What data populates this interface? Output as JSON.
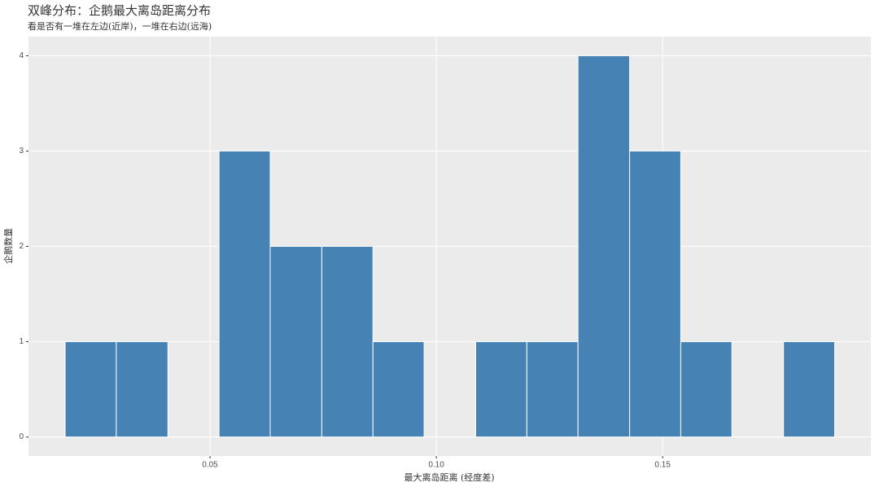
{
  "chart_data": {
    "type": "histogram",
    "title": "双峰分布：企鹅最大离岛距离分布",
    "subtitle": "看是否有一堆在左边(近岸)，一堆在右边(远海)",
    "x_label": "最大离岛距离 (经度差)",
    "y_label": "企鹅数量",
    "bins": [
      0.018,
      0.0293,
      0.0407,
      0.052,
      0.0633,
      0.0747,
      0.086,
      0.0973,
      0.1087,
      0.12,
      0.1313,
      0.1427,
      0.154,
      0.1653,
      0.1767,
      0.188
    ],
    "counts": [
      1,
      1,
      0,
      3,
      2,
      2,
      1,
      0,
      1,
      1,
      4,
      3,
      1,
      0,
      1
    ],
    "color": "#4682b4",
    "xlim": [
      0.0099,
      0.196
    ],
    "ylim": [
      -0.2,
      4.2
    ],
    "xticks": [
      0.05,
      {
        "value": 0.1,
        "label": "0.10"
      },
      0.15
    ],
    "yticks": [
      0,
      1,
      2,
      3,
      4
    ],
    "grid": true
  }
}
